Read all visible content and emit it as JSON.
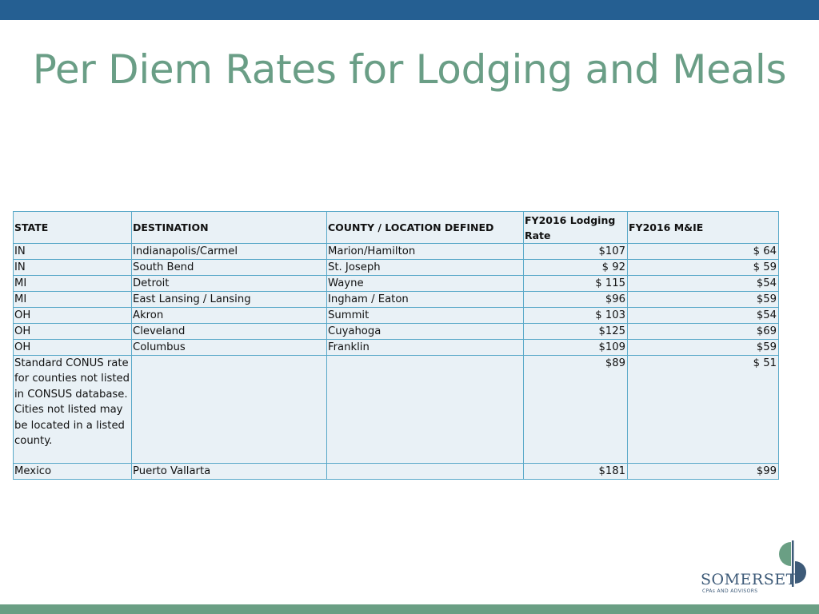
{
  "slide": {
    "title": "Per Diem Rates for Lodging and Meals"
  },
  "table": {
    "headers": [
      "STATE",
      "DESTINATION",
      "COUNTY / LOCATION DEFINED",
      "FY2016 Lodging Rate",
      "FY2016 M&IE"
    ],
    "rows": [
      [
        "IN",
        "Indianapolis/Carmel",
        "Marion/Hamilton",
        "$107",
        "$ 64"
      ],
      [
        "IN",
        "South Bend",
        "St. Joseph",
        "$ 92",
        "$ 59"
      ],
      [
        "MI",
        "Detroit",
        "Wayne",
        "$ 115",
        "$54"
      ],
      [
        "MI",
        "East Lansing / Lansing",
        "Ingham / Eaton",
        "$96",
        "$59"
      ],
      [
        "OH",
        "Akron",
        "Summit",
        "$ 103",
        "$54"
      ],
      [
        "OH",
        "Cleveland",
        "Cuyahoga",
        "$125",
        "$69"
      ],
      [
        "OH",
        "Columbus",
        "Franklin",
        "$109",
        "$59"
      ],
      [
        "Standard CONUS rate for counties not listed in CONSUS database. Cities not listed may be located in a listed county.",
        "",
        "",
        "$89",
        "$ 51"
      ],
      [
        "Mexico",
        "Puerto Vallarta",
        "",
        "$181",
        "$99"
      ]
    ]
  },
  "logo": {
    "name": "SOMERSET",
    "tagline": "CPAs AND ADVISORS"
  },
  "colors": {
    "top_bar": "#255f92",
    "bottom_bar": "#6a9f84",
    "title": "#6a9e86",
    "cell_fill": "#e9f1f6",
    "cell_border": "#58a8c8"
  }
}
